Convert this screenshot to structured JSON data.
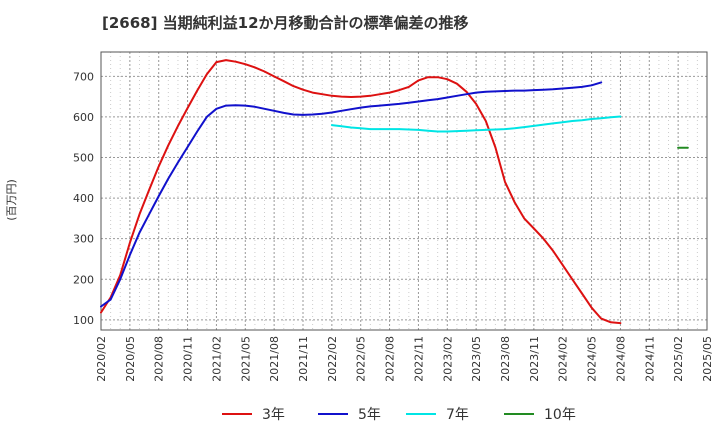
{
  "chart_data": {
    "type": "line",
    "title": "[2668]  当期純利益12か月移動合計の標準偏差の推移",
    "ylabel": "(百万円)",
    "xlabel": "",
    "ylim": [
      75,
      760
    ],
    "yticks": [
      100,
      200,
      300,
      400,
      500,
      600,
      700
    ],
    "x_start": "2020/02",
    "xticks": [
      "2020/02",
      "2020/05",
      "2020/08",
      "2020/11",
      "2021/02",
      "2021/05",
      "2021/08",
      "2021/11",
      "2022/02",
      "2022/05",
      "2022/08",
      "2022/11",
      "2023/02",
      "2023/05",
      "2023/08",
      "2023/11",
      "2024/02",
      "2024/05",
      "2024/08",
      "2024/11",
      "2025/02",
      "2025/05"
    ],
    "xlim_months": [
      0,
      63
    ],
    "grid": true,
    "legend_position": "bottom",
    "series": [
      {
        "name": "3年",
        "color": "#dd1111",
        "start_month": 0,
        "values": [
          118,
          155,
          210,
          290,
          360,
          420,
          478,
          530,
          578,
          622,
          665,
          705,
          735,
          740,
          736,
          730,
          722,
          712,
          700,
          688,
          676,
          667,
          660,
          656,
          652,
          650,
          649,
          650,
          652,
          656,
          660,
          666,
          674,
          690,
          698,
          698,
          693,
          682,
          662,
          632,
          590,
          525,
          440,
          390,
          350,
          325,
          300,
          270,
          235,
          200,
          165,
          130,
          103,
          94,
          92
        ]
      },
      {
        "name": "5年",
        "color": "#1111cc",
        "start_month": 0,
        "values": [
          133,
          150,
          200,
          260,
          315,
          360,
          405,
          448,
          488,
          526,
          564,
          600,
          620,
          628,
          629,
          628,
          625,
          620,
          615,
          610,
          606,
          605,
          606,
          608,
          611,
          615,
          619,
          623,
          626,
          628,
          630,
          632,
          635,
          638,
          641,
          644,
          648,
          652,
          656,
          660,
          662,
          663,
          664,
          665,
          665,
          666,
          667,
          668,
          670,
          672,
          674,
          678,
          685
        ]
      },
      {
        "name": "7年",
        "color": "#00e5e5",
        "start_month": 24,
        "values": [
          580,
          577,
          574,
          572,
          570,
          570,
          570,
          570,
          569,
          568,
          566,
          564,
          564,
          565,
          566,
          567,
          568,
          569,
          570,
          572,
          575,
          578,
          581,
          584,
          587,
          590,
          592,
          595,
          597,
          599,
          601
        ]
      },
      {
        "name": "10年",
        "color": "#228b22",
        "start_month": 60,
        "values": [
          524,
          524
        ]
      }
    ]
  }
}
